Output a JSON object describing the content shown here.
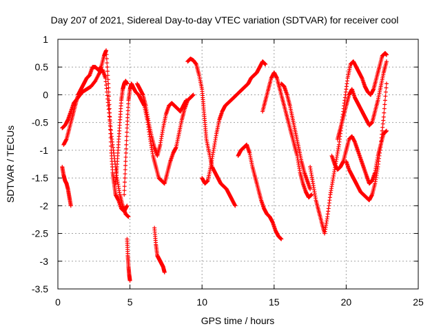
{
  "chart_data": {
    "type": "scatter",
    "title": "Day 207 of 2021, Sidereal Day-to-day VTEC variation (SDTVAR) for receiver cool",
    "xlabel": "GPS time / hours",
    "ylabel": "SDTVAR / TECUs",
    "xlim": [
      0,
      25
    ],
    "ylim": [
      -3.5,
      1
    ],
    "xticks": [
      0,
      5,
      10,
      15,
      20,
      25
    ],
    "xtick_labels": [
      "0",
      "5",
      "10",
      "15",
      "20",
      "25"
    ],
    "yticks": [
      1,
      0.5,
      0,
      -0.5,
      -1,
      -1.5,
      -2,
      -2.5,
      -3,
      -3.5
    ],
    "ytick_labels": [
      "1",
      "0.5",
      "0",
      "-0.5",
      "-1",
      "-1.5",
      "-2",
      "-2.5",
      "-3",
      "-3.5"
    ],
    "grid": true,
    "marker": "+",
    "color": "#ff0000",
    "series": [
      {
        "name": "s1",
        "x": [
          0.3,
          0.5,
          0.7,
          0.9,
          1.1,
          1.4,
          1.7,
          2.0,
          2.3,
          2.6,
          2.9,
          3.1,
          3.3,
          3.5,
          3.7,
          3.9,
          4.1,
          4.3,
          4.5,
          4.7,
          4.9
        ],
        "y": [
          -0.6,
          -0.55,
          -0.45,
          -0.3,
          -0.15,
          -0.05,
          0.05,
          0.1,
          0.15,
          0.25,
          0.4,
          0.45,
          0.3,
          -0.2,
          -0.7,
          -1.1,
          -1.5,
          -1.8,
          -2.0,
          -2.15,
          -2.2
        ]
      },
      {
        "name": "s2",
        "x": [
          0.3,
          0.4,
          0.5,
          0.6,
          0.7,
          0.8,
          0.9
        ],
        "y": [
          -1.3,
          -1.45,
          -1.55,
          -1.6,
          -1.7,
          -1.85,
          -2.0
        ]
      },
      {
        "name": "s3",
        "x": [
          0.4,
          0.6,
          0.8,
          1.0,
          1.2,
          1.4,
          1.6,
          1.8,
          2.0,
          2.2,
          2.4,
          2.6,
          2.8,
          3.0,
          3.2,
          3.35,
          3.5,
          3.6,
          3.7,
          3.8,
          3.9,
          4.0,
          4.2,
          4.4,
          4.6,
          4.8
        ],
        "y": [
          -0.9,
          -0.8,
          -0.6,
          -0.4,
          -0.2,
          0.0,
          0.1,
          0.2,
          0.3,
          0.35,
          0.5,
          0.5,
          0.45,
          0.5,
          0.7,
          0.8,
          0.2,
          -0.4,
          -1.0,
          -1.4,
          -1.6,
          -1.8,
          -1.9,
          -2.05,
          -2.1,
          -2.0
        ]
      },
      {
        "name": "s4",
        "x": [
          4.6,
          4.7,
          4.8,
          4.9,
          5.0,
          5.1,
          5.2,
          5.4,
          5.6,
          5.8,
          6.0,
          6.2,
          6.4,
          6.6,
          6.8,
          7.0,
          7.2,
          7.4,
          7.6,
          7.8,
          8.0,
          8.2,
          8.4,
          8.6,
          8.8,
          9.0,
          9.2,
          9.4
        ],
        "y": [
          -1.8,
          -1.2,
          -0.6,
          -0.1,
          0.1,
          0.2,
          0.15,
          0.05,
          0.0,
          -0.1,
          -0.2,
          -0.45,
          -0.8,
          -1.1,
          -1.3,
          -1.5,
          -1.55,
          -1.6,
          -1.4,
          -1.2,
          -1.05,
          -0.95,
          -0.7,
          -0.45,
          -0.25,
          -0.1,
          -0.05,
          0.0
        ]
      },
      {
        "name": "s5",
        "x": [
          4.8,
          4.85,
          4.9,
          4.95,
          5.0
        ],
        "y": [
          -2.6,
          -2.9,
          -3.1,
          -3.25,
          -3.35
        ]
      },
      {
        "name": "s6",
        "x": [
          6.7,
          6.8,
          6.9,
          7.0,
          7.1,
          7.2,
          7.3,
          7.4
        ],
        "y": [
          -2.4,
          -2.7,
          -2.9,
          -2.95,
          -3.0,
          -3.05,
          -3.1,
          -3.2
        ]
      },
      {
        "name": "s7",
        "x": [
          9.0,
          9.2,
          9.4,
          9.6,
          9.8,
          10.0,
          10.1,
          10.2,
          10.3,
          10.5,
          10.7,
          10.9,
          11.1,
          11.3,
          11.5,
          11.7,
          11.9,
          12.1,
          12.3
        ],
        "y": [
          0.6,
          0.65,
          0.62,
          0.55,
          0.35,
          0.1,
          -0.2,
          -0.5,
          -0.8,
          -1.05,
          -1.3,
          -1.4,
          -1.5,
          -1.6,
          -1.65,
          -1.7,
          -1.8,
          -1.9,
          -2.0
        ]
      },
      {
        "name": "s8",
        "x": [
          10.0,
          10.2,
          10.4,
          10.6,
          10.8,
          11.0,
          11.2,
          11.4,
          11.6,
          11.8,
          12.0,
          12.2,
          12.4,
          12.6,
          12.8,
          13.0,
          13.2,
          13.4,
          13.6,
          13.8,
          14.0,
          14.2,
          14.4
        ],
        "y": [
          -1.5,
          -1.6,
          -1.55,
          -1.3,
          -1.0,
          -0.7,
          -0.45,
          -0.3,
          -0.2,
          -0.15,
          -0.1,
          -0.05,
          0.0,
          0.05,
          0.1,
          0.15,
          0.2,
          0.3,
          0.35,
          0.4,
          0.5,
          0.6,
          0.55
        ]
      },
      {
        "name": "s9",
        "x": [
          12.5,
          12.7,
          12.9,
          13.1,
          13.3,
          13.5,
          13.7,
          13.9,
          14.1,
          14.3,
          14.5,
          14.7,
          14.9,
          15.1,
          15.3,
          15.5
        ],
        "y": [
          -1.1,
          -1.0,
          -0.95,
          -0.9,
          -1.05,
          -1.3,
          -1.5,
          -1.7,
          -1.9,
          -2.05,
          -2.15,
          -2.2,
          -2.3,
          -2.45,
          -2.55,
          -2.6
        ]
      },
      {
        "name": "s10",
        "x": [
          14.2,
          14.4,
          14.6,
          14.8,
          15.0,
          15.2,
          15.4,
          15.6,
          15.8,
          16.0,
          16.2,
          16.4,
          16.6,
          16.8,
          17.0,
          17.2,
          17.4,
          17.6
        ],
        "y": [
          -0.3,
          -0.1,
          0.1,
          0.3,
          0.4,
          0.3,
          0.1,
          -0.1,
          -0.3,
          -0.5,
          -0.7,
          -0.9,
          -1.1,
          -1.4,
          -1.6,
          -1.75,
          -1.85,
          -1.8
        ]
      },
      {
        "name": "s11",
        "x": [
          15.5,
          15.7,
          15.9,
          16.1,
          16.3,
          16.5,
          16.7,
          16.9,
          17.1,
          17.3,
          17.5
        ],
        "y": [
          0.2,
          0.15,
          0.0,
          -0.2,
          -0.45,
          -0.7,
          -0.95,
          -1.2,
          -1.4,
          -1.55,
          -1.7
        ]
      },
      {
        "name": "s12",
        "x": [
          17.5,
          17.7,
          17.9,
          18.1,
          18.3,
          18.5,
          18.7,
          18.9,
          19.1,
          19.3,
          19.5,
          19.7,
          19.9,
          20.1,
          20.3,
          20.5,
          20.7,
          20.9,
          21.1,
          21.3,
          21.5,
          21.7,
          21.9,
          22.1,
          22.3,
          22.5,
          22.7,
          22.8
        ],
        "y": [
          -1.3,
          -1.6,
          -1.9,
          -2.1,
          -2.3,
          -2.5,
          -2.2,
          -1.8,
          -1.5,
          -1.2,
          -0.9,
          -0.5,
          -0.1,
          0.3,
          0.55,
          0.6,
          0.5,
          0.4,
          0.3,
          0.15,
          0.05,
          0.0,
          0.1,
          0.3,
          0.5,
          0.7,
          0.75,
          0.72
        ]
      },
      {
        "name": "s13",
        "x": [
          19.4,
          19.6,
          19.8,
          20.0,
          20.2,
          20.4,
          20.6,
          20.8,
          21.0,
          21.2,
          21.4,
          21.6,
          21.8,
          22.0,
          22.2,
          22.4,
          22.6,
          22.8
        ],
        "y": [
          -0.8,
          -0.6,
          -0.4,
          -0.2,
          0.0,
          0.1,
          -0.05,
          -0.15,
          -0.25,
          -0.35,
          -0.45,
          -0.55,
          -0.5,
          -0.3,
          -0.1,
          0.15,
          0.4,
          0.6
        ]
      },
      {
        "name": "s14",
        "x": [
          19.0,
          19.2,
          19.4,
          19.6,
          19.8,
          20.0,
          20.2,
          20.4,
          20.6,
          20.8,
          21.0,
          21.2,
          21.4,
          21.6,
          21.8,
          22.0,
          22.2,
          22.4,
          22.6,
          22.8
        ],
        "y": [
          -1.1,
          -1.25,
          -1.35,
          -1.3,
          -1.2,
          -1.0,
          -0.8,
          -0.75,
          -0.85,
          -1.0,
          -1.15,
          -1.3,
          -1.45,
          -1.6,
          -1.55,
          -1.4,
          -1.1,
          -0.9,
          -0.7,
          -0.65
        ]
      },
      {
        "name": "s15",
        "x": [
          20.0,
          20.2,
          20.4,
          20.6,
          20.8,
          21.0,
          21.2,
          21.4,
          21.6,
          21.8,
          22.0,
          22.2,
          22.4,
          22.6,
          22.8
        ],
        "y": [
          -1.2,
          -1.35,
          -1.45,
          -1.55,
          -1.65,
          -1.75,
          -1.8,
          -1.85,
          -1.9,
          -1.8,
          -1.6,
          -1.3,
          -0.9,
          -0.4,
          0.2
        ]
      },
      {
        "name": "s16",
        "x": [
          5.5,
          5.7,
          5.9,
          6.1,
          6.3,
          6.5,
          6.7,
          6.9,
          7.1,
          7.3,
          7.5,
          7.7,
          7.9,
          8.1,
          8.3,
          8.5,
          8.7,
          8.9
        ],
        "y": [
          0.2,
          0.1,
          0.0,
          -0.2,
          -0.5,
          -0.75,
          -0.95,
          -1.1,
          -0.9,
          -0.6,
          -0.35,
          -0.2,
          -0.15,
          -0.2,
          -0.25,
          -0.3,
          -0.2,
          -0.1
        ]
      },
      {
        "name": "s17",
        "x": [
          4.0,
          4.1,
          4.2,
          4.3,
          4.4,
          4.5,
          4.6,
          4.7,
          4.8
        ],
        "y": [
          -1.6,
          -1.3,
          -0.9,
          -0.5,
          -0.1,
          0.1,
          0.2,
          0.25,
          0.2
        ]
      }
    ]
  }
}
